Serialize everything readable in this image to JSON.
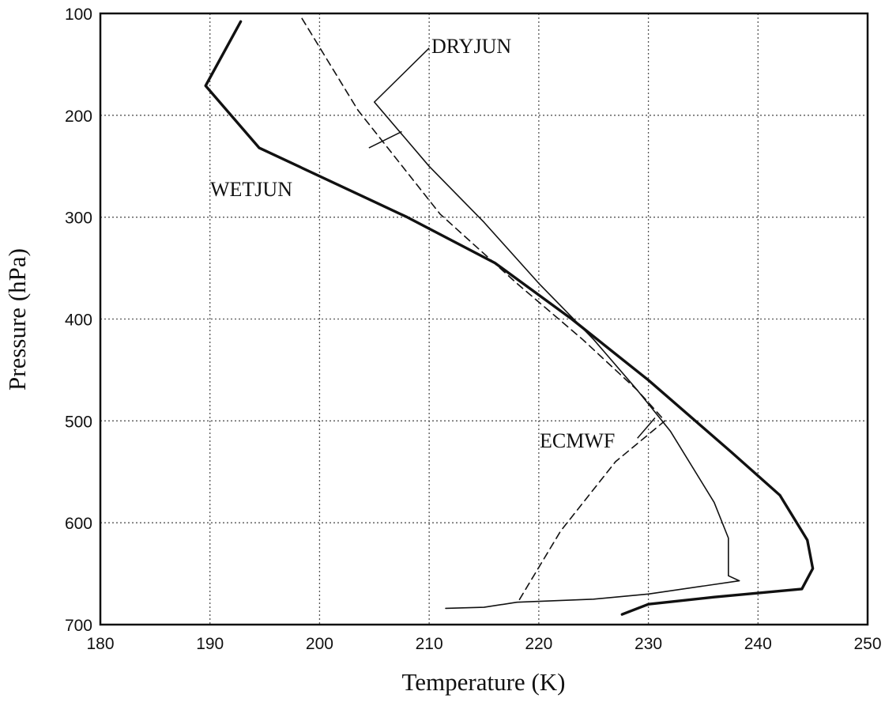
{
  "chart_data": {
    "type": "line",
    "xlabel": "Temperature (K)",
    "ylabel": "Pressure (hPa)",
    "xlim": [
      180,
      250
    ],
    "ylim": [
      100,
      700
    ],
    "y_inverted": true,
    "grid": true,
    "x_ticks": [
      "180",
      "190",
      "200",
      "210",
      "220",
      "230",
      "240",
      "250"
    ],
    "y_ticks": [
      "100",
      "200",
      "300",
      "400",
      "500",
      "600",
      "700"
    ],
    "series": [
      {
        "name": "WETJUN",
        "style": "thick-solid",
        "color": "#111111",
        "points": [
          [
            192.8,
            108
          ],
          [
            189.6,
            171
          ],
          [
            194.5,
            232
          ],
          [
            208,
            300
          ],
          [
            216,
            345
          ],
          [
            223,
            400
          ],
          [
            230,
            460
          ],
          [
            237.5,
            530
          ],
          [
            242,
            573
          ],
          [
            244.5,
            617
          ],
          [
            245,
            645
          ],
          [
            244,
            665
          ],
          [
            236,
            673
          ],
          [
            230,
            680
          ],
          [
            227.6,
            690
          ]
        ]
      },
      {
        "name": "DRYJUN",
        "style": "thin-solid",
        "color": "#111111",
        "points": [
          [
            205,
            187
          ],
          [
            210,
            250
          ],
          [
            215,
            305
          ],
          [
            220,
            365
          ],
          [
            225,
            420
          ],
          [
            229,
            470
          ],
          [
            232,
            510
          ],
          [
            236,
            580
          ],
          [
            237.3,
            615
          ],
          [
            237.3,
            652
          ],
          [
            238.3,
            657
          ],
          [
            230,
            670
          ],
          [
            225,
            675
          ],
          [
            218,
            678
          ],
          [
            215,
            683
          ],
          [
            211.5,
            684
          ]
        ]
      },
      {
        "name": "ECMWF",
        "style": "dashed",
        "color": "#111111",
        "points": [
          [
            198.4,
            105
          ],
          [
            203.5,
            195
          ],
          [
            211,
            297
          ],
          [
            218,
            365
          ],
          [
            224,
            420
          ],
          [
            229,
            470
          ],
          [
            231.5,
            500
          ],
          [
            227,
            540
          ],
          [
            222,
            608
          ],
          [
            218.2,
            676
          ]
        ]
      }
    ],
    "annotations": [
      {
        "label": "DRYJUN"
      },
      {
        "label": "WETJUN"
      },
      {
        "label": "ECMWF"
      }
    ]
  }
}
